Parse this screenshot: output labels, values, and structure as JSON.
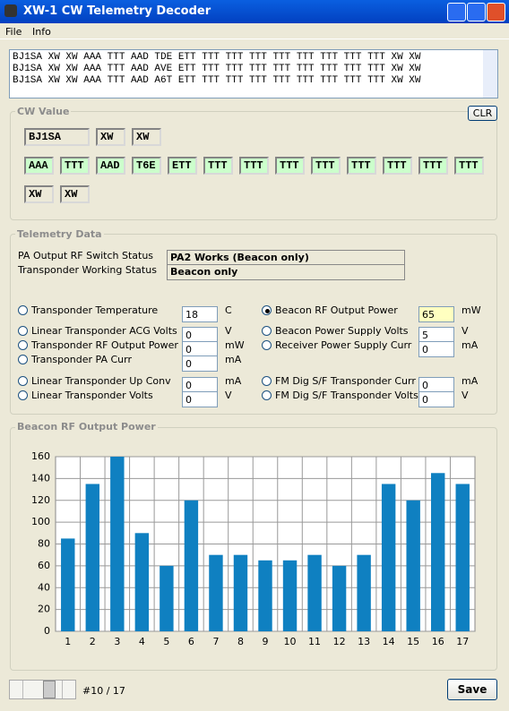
{
  "window": {
    "title": "XW-1 CW Telemetry Decoder"
  },
  "menu": [
    "File",
    "Info"
  ],
  "log_lines": [
    "BJ1SA XW XW AAA TTT AAD TDE ETT TTT TTT TTT TTT TTT TTT TTT TTT XW XW",
    "BJ1SA XW XW AAA TTT AAD AVE ETT TTT TTT TTT TTT TTT TTT TTT TTT XW XW",
    "BJ1SA XW XW AAA TTT AAD A6T ETT TTT TTT TTT TTT TTT TTT TTT TTT XW XW"
  ],
  "cw_value": {
    "title": "CW Value",
    "clear_button": "CLR",
    "row1": [
      "BJ1SA",
      "XW",
      "XW"
    ],
    "row2": [
      "AAA",
      "TTT",
      "AAD",
      "T6E",
      "ETT",
      "TTT",
      "TTT",
      "TTT",
      "TTT",
      "TTT",
      "TTT",
      "TTT",
      "TTT"
    ],
    "row3": [
      "XW",
      "XW"
    ]
  },
  "telemetry": {
    "title": "Telemetry Data",
    "status": [
      {
        "label": "PA Output RF Switch Status",
        "value": "PA2 Works (Beacon only)"
      },
      {
        "label": "Transponder Working Status",
        "value": "Beacon only"
      }
    ],
    "left": [
      {
        "label": "Transponder Temperature",
        "value": 18,
        "unit": "C"
      },
      {
        "label": "Linear Transponder ACG Volts",
        "value": 0,
        "unit": "V"
      },
      {
        "label": "Transponder RF Output Power",
        "value": 0,
        "unit": "mW"
      },
      {
        "label": "Transponder PA Curr",
        "value": 0,
        "unit": "mA"
      },
      {
        "label": "Linear Transponder Up Conv",
        "value": 0,
        "unit": "mA"
      },
      {
        "label": "Linear Transponder Volts",
        "value": 0,
        "unit": "V"
      }
    ],
    "right": [
      {
        "label": "Beacon RF Output Power",
        "value": 65,
        "unit": "mW",
        "selected": true
      },
      {
        "label": "Beacon Power Supply Volts",
        "value": 5,
        "unit": "V"
      },
      {
        "label": "Receiver Power Supply Curr",
        "value": 0,
        "unit": "mA"
      },
      {
        "label": "FM Dig S/F Transponder Curr",
        "value": 0,
        "unit": "mA"
      },
      {
        "label": "FM Dig S/F Transponder Volts",
        "value": 0,
        "unit": "V"
      }
    ]
  },
  "chart_data": {
    "type": "bar",
    "title": "Beacon RF Output Power",
    "categories": [
      "1",
      "2",
      "3",
      "4",
      "5",
      "6",
      "7",
      "8",
      "9",
      "10",
      "11",
      "12",
      "13",
      "14",
      "15",
      "16",
      "17"
    ],
    "values": [
      85,
      135,
      160,
      90,
      60,
      120,
      70,
      70,
      65,
      65,
      70,
      60,
      70,
      135,
      120,
      145,
      135
    ],
    "color": "#0f80c1",
    "ylim": [
      0,
      160
    ],
    "yticks": [
      0,
      20,
      40,
      60,
      80,
      100,
      120,
      140,
      160
    ],
    "grid": true
  },
  "footer": {
    "record": "#10 / 17",
    "save_button": "Save"
  }
}
